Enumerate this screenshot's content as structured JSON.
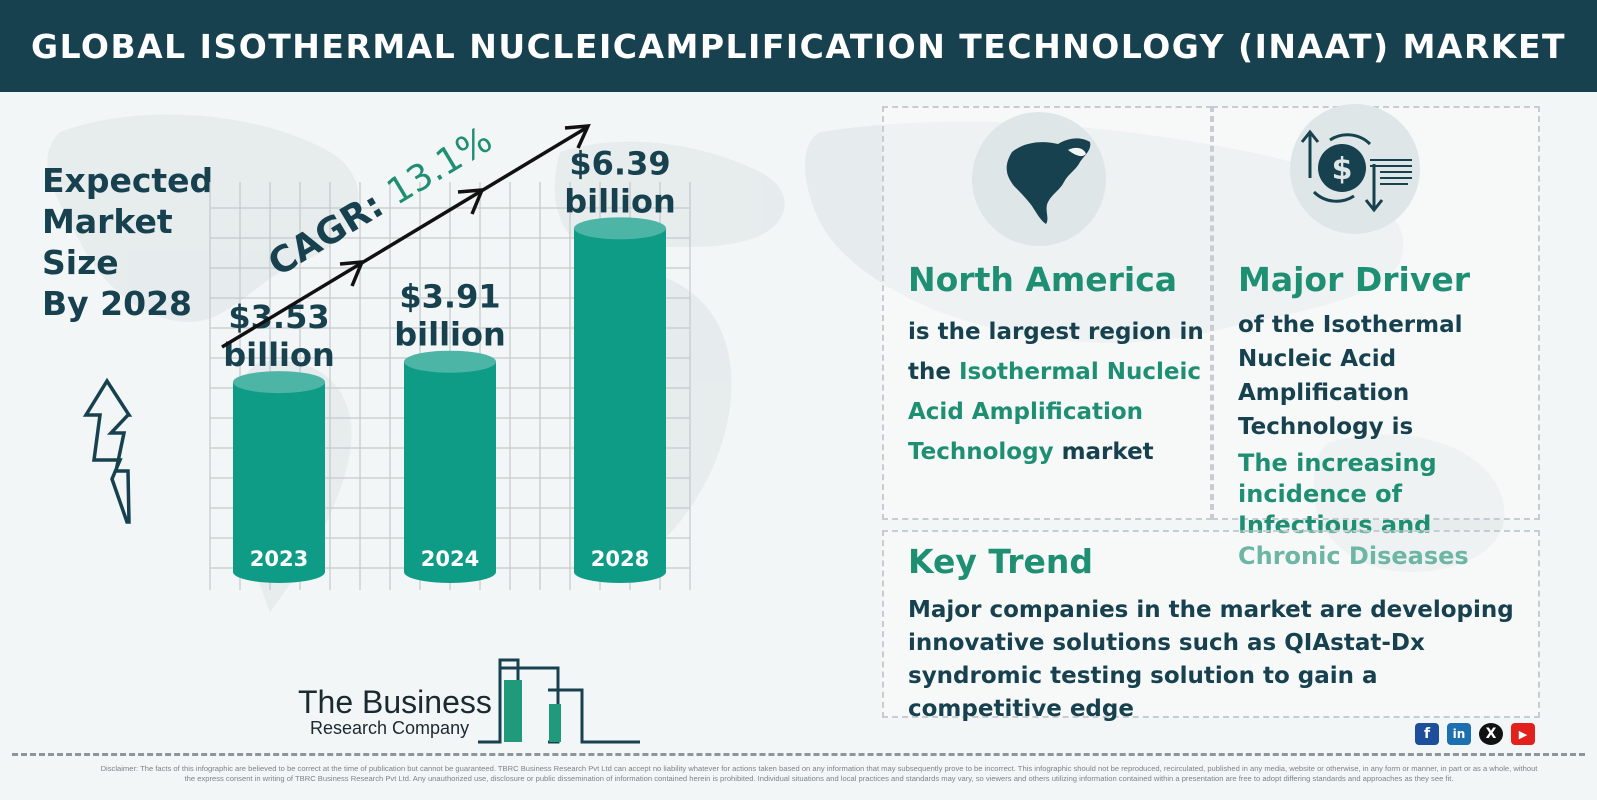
{
  "header": {
    "title": "GLOBAL ISOTHERMAL NUCLEICAMPLIFICATION TECHNOLOGY (INAAT) MARKET"
  },
  "expected": {
    "lines": [
      "Expected",
      "Market",
      "Size",
      "By 2028"
    ]
  },
  "chart_data": {
    "type": "bar",
    "categories": [
      "2023",
      "2024",
      "2028"
    ],
    "values": [
      3.53,
      3.91,
      6.39
    ],
    "value_labels": [
      {
        "amount": "$3.53",
        "unit": "billion"
      },
      {
        "amount": "$3.91",
        "unit": "billion"
      },
      {
        "amount": "$6.39",
        "unit": "billion"
      }
    ],
    "annotation": {
      "prefix": "CAGR:",
      "value": "13.1%"
    },
    "title": "",
    "xlabel": "",
    "ylabel": "",
    "ylim": [
      0,
      7.4
    ],
    "grid": true,
    "colors": {
      "bar": "#0e9c86",
      "bar_top": "#4cb5a6",
      "text": "#17414f",
      "accent": "#1f8f73"
    }
  },
  "north_america": {
    "title": "North America",
    "text_a": "is the largest region in the ",
    "text_highlight": "Isothermal Nucleic Acid Amplification Technology",
    "text_b": " market",
    "icon": "north-america-map-icon"
  },
  "major_driver": {
    "title": "Major Driver",
    "text": "of the Isothermal Nucleic Acid Amplification Technology is",
    "highlight": "The increasing incidence of Infectious and Chronic Diseases",
    "icon": "dollar-exchange-icon"
  },
  "key_trend": {
    "title": "Key Trend",
    "text": "Major companies in the market are developing innovative solutions such as QIAstat-Dx syndromic testing solution to gain a competitive edge"
  },
  "logo": {
    "name": "The Business",
    "sub": "Research Company"
  },
  "socials": [
    {
      "icon": "facebook-icon",
      "glyph": "f"
    },
    {
      "icon": "linkedin-icon",
      "glyph": "in"
    },
    {
      "icon": "x-icon",
      "glyph": "X"
    },
    {
      "icon": "youtube-icon",
      "glyph": "▶"
    }
  ],
  "disclaimer": "Disclaimer: The facts of this infographic are believed to be correct at the time of publication but cannot be guaranteed. TBRC Business Research Pvt Ltd can accept no liability whatever for actions taken based on any information that may subsequently prove to be incorrect. This infographic should not be reproduced, recirculated, published in any media, website or otherwise, in any form or manner, in part or as a whole, without the express consent in writing of TBRC Business Research Pvt Ltd. Any unauthorized use, disclosure or public dissemination of information contained herein is prohibited. Individual situations and local practices and standards may vary, so viewers and others utilizing information contained within a presentation are free to adopt differing standards and approaches as they see fit."
}
